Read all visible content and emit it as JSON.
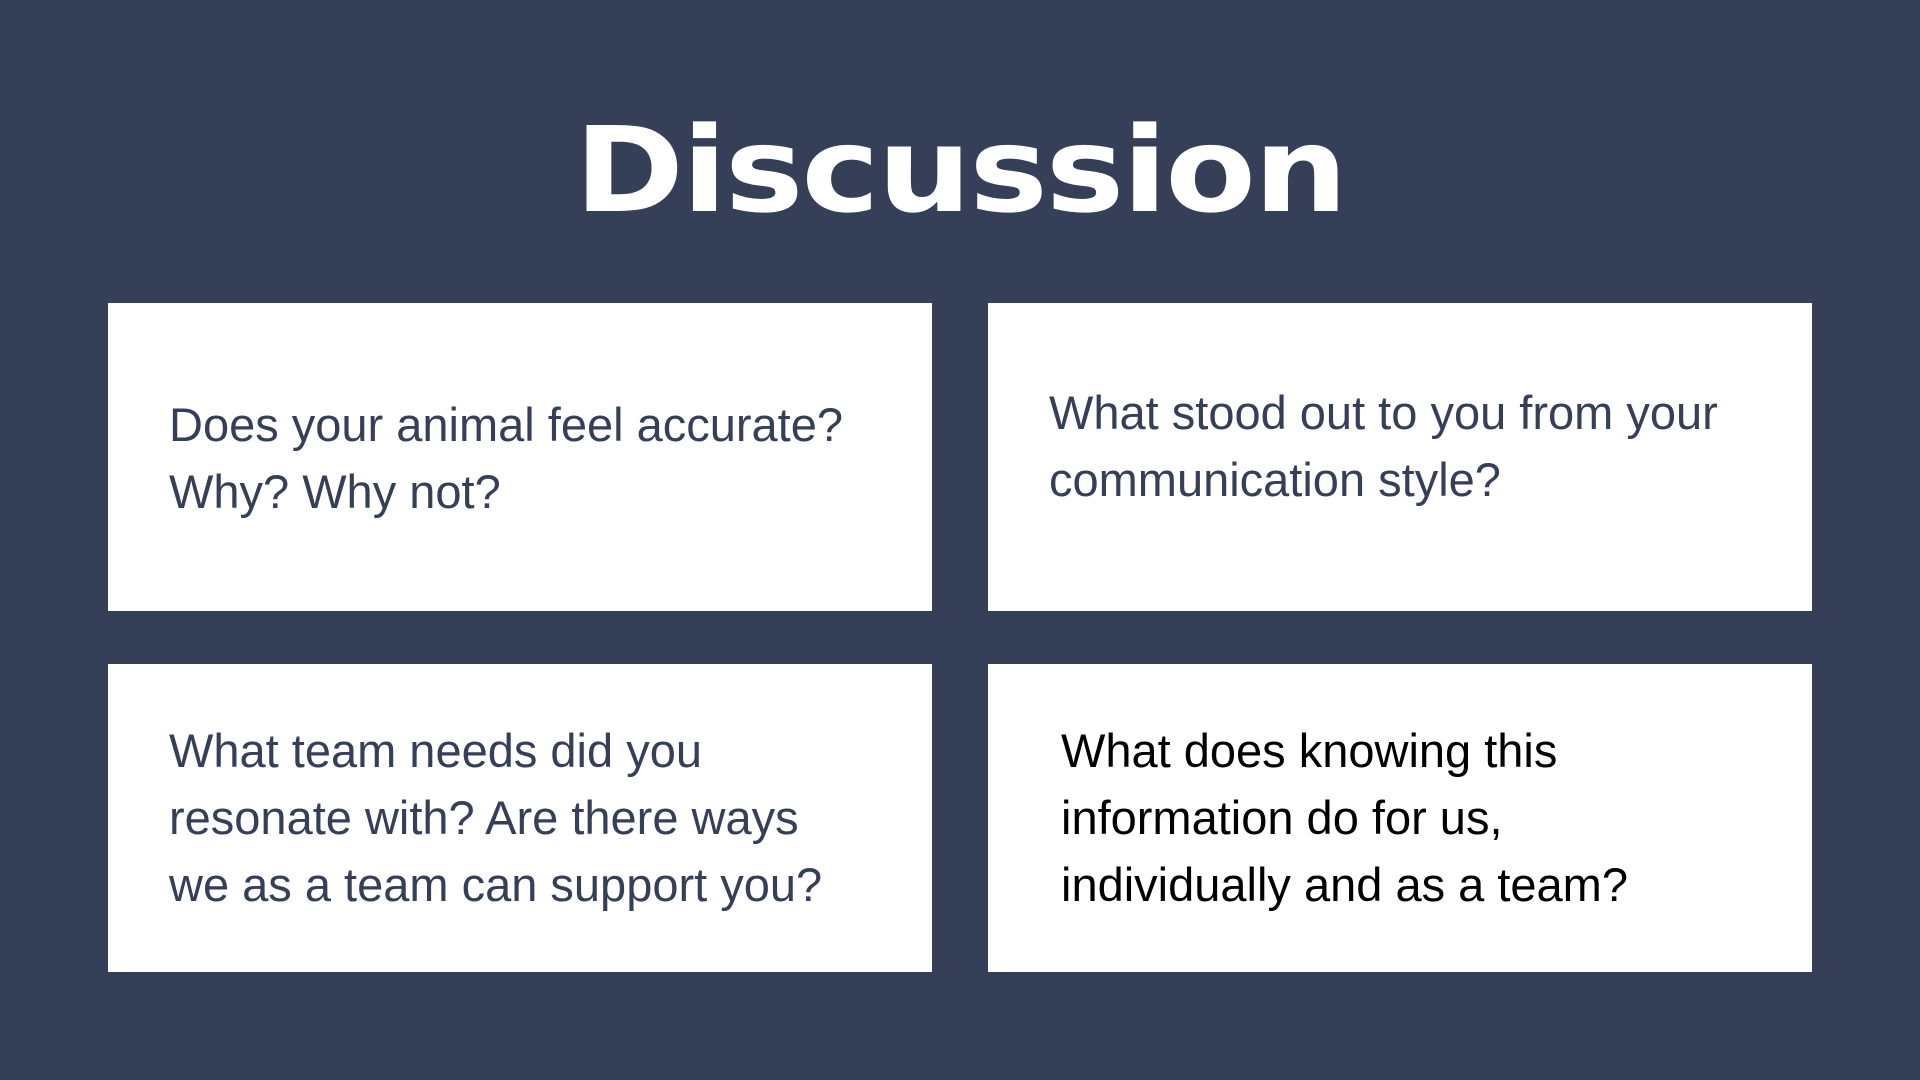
{
  "slide": {
    "title": "Discussion",
    "background_color": "#353f57",
    "card_color": "#ffffff",
    "cards": [
      {
        "text": "Does your animal feel accurate?\nWhy? Why not?"
      },
      {
        "text": "What stood out to you from your\ncommunication style?"
      },
      {
        "text": "What team needs did you\nresonate with? Are there ways\nwe as a team can support you?"
      },
      {
        "text": "What does knowing this\ninformation do for us,\nindividually and as a team?"
      }
    ]
  }
}
